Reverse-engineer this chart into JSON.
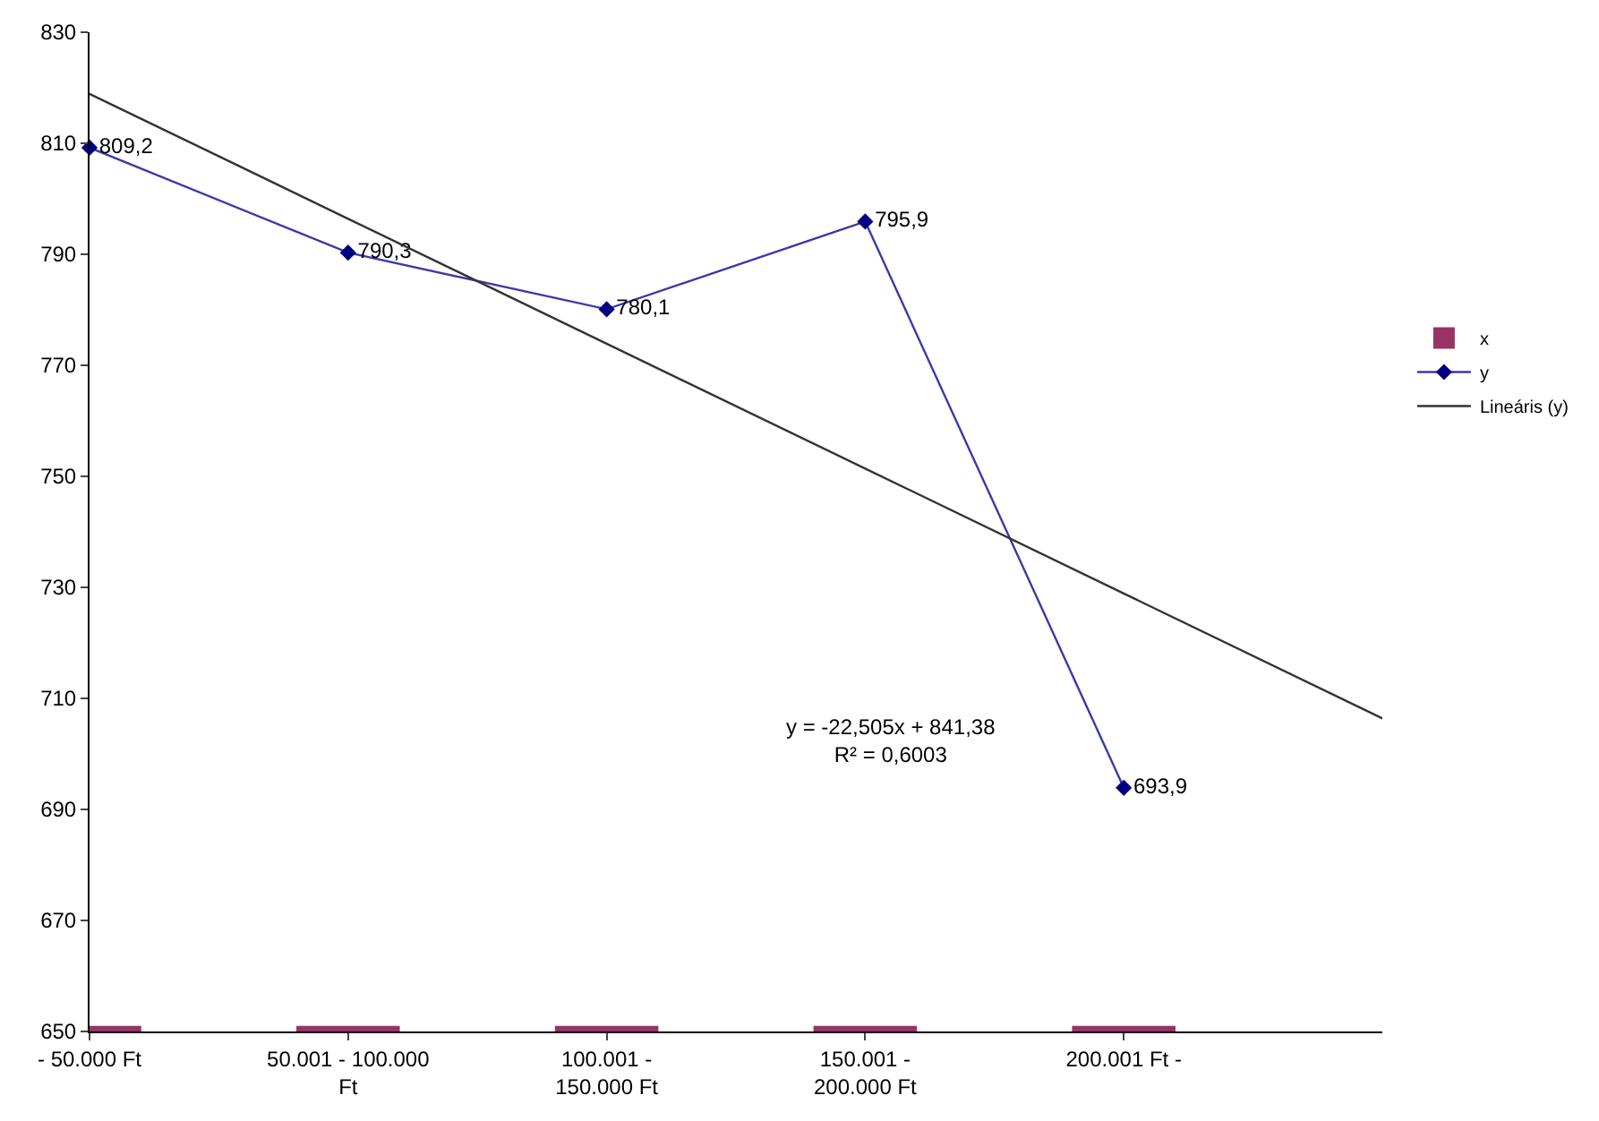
{
  "chart_data": {
    "type": "line",
    "categories": [
      "- 50.000 Ft",
      "50.001 - 100.000 Ft",
      "100.001 - 150.000 Ft",
      "150.001 - 200.000 Ft",
      "200.001 Ft -",
      null
    ],
    "series": [
      {
        "name": "x",
        "type": "bar",
        "color": "#993366",
        "values": [
          651,
          651,
          651,
          651,
          651,
          null
        ]
      },
      {
        "name": "y",
        "color": "#3a3aa8",
        "marker": "diamond",
        "values": [
          809.2,
          790.3,
          780.1,
          795.9,
          693.9,
          null
        ],
        "value_labels": [
          "809,2",
          "790,3",
          "780,1",
          "795,9",
          "693,9",
          null
        ]
      },
      {
        "name": "Lineáris (y)",
        "color": "#333333",
        "marker": "none",
        "values": [
          818.9,
          796.4,
          773.9,
          751.4,
          728.9,
          706.4
        ]
      }
    ],
    "ylim": [
      650,
      830
    ],
    "yticks": [
      650,
      670,
      690,
      710,
      730,
      750,
      770,
      790,
      810,
      830
    ],
    "grid": false,
    "legend": "right",
    "annotations": [
      "y = -22,505x + 841,38\nR² = 0,6003"
    ]
  }
}
